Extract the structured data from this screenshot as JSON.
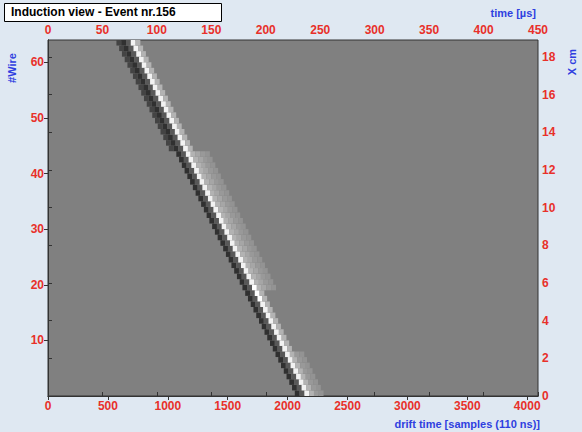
{
  "chart_data": {
    "type": "heatmap",
    "title": "Induction view - Event nr.156",
    "x_label": "drift time [samples (110 ns)]",
    "x2_label": "time [µs]",
    "y_label": "#Wire",
    "y2_label": "X cm",
    "xlim": [
      0,
      4090
    ],
    "xticks": [
      0,
      500,
      1000,
      1500,
      2000,
      2500,
      3000,
      3500,
      4000
    ],
    "x2lim": [
      0,
      450
    ],
    "x2ticks": [
      0,
      50,
      100,
      150,
      200,
      250,
      300,
      350,
      400,
      450
    ],
    "ylim": [
      0,
      64
    ],
    "yticks": [
      10,
      20,
      30,
      40,
      50,
      60
    ],
    "y2lim": [
      0,
      18.9
    ],
    "y2ticks": [
      0,
      2,
      4,
      6,
      8,
      10,
      12,
      14,
      16,
      18
    ],
    "grid": false,
    "bin_width": 40,
    "color_range": [
      -1,
      1
    ],
    "rows": [
      {
        "wire": 1,
        "start": 2060,
        "values": [
          -0.8,
          -0.4,
          0.9,
          0.4,
          0.2,
          0.15
        ]
      },
      {
        "wire": 2,
        "start": 2037,
        "values": [
          -0.8,
          -0.4,
          0.9,
          0.4,
          0.2,
          0.15
        ]
      },
      {
        "wire": 3,
        "start": 2014,
        "values": [
          -0.8,
          -0.4,
          0.9,
          0.4,
          0.2,
          0.15
        ]
      },
      {
        "wire": 4,
        "start": 1991,
        "values": [
          -0.8,
          -0.4,
          0.9,
          0.4,
          0.2,
          0.15
        ]
      },
      {
        "wire": 5,
        "start": 1968,
        "values": [
          -0.8,
          -0.4,
          0.9,
          0.4,
          0.2,
          0.15
        ]
      },
      {
        "wire": 6,
        "start": 1945,
        "values": [
          -0.8,
          -0.4,
          0.9,
          0.4,
          0.2,
          0.15
        ]
      },
      {
        "wire": 7,
        "start": 1922,
        "values": [
          -0.8,
          -0.4,
          0.9,
          0.4,
          0.2,
          0.15
        ]
      },
      {
        "wire": 8,
        "start": 1899,
        "values": [
          -0.8,
          -0.4,
          0.9,
          0.4,
          0.2,
          0.15
        ]
      },
      {
        "wire": 9,
        "start": 1876,
        "values": [
          -0.8,
          -0.4,
          0.9,
          0.4
        ]
      },
      {
        "wire": 10,
        "start": 1853,
        "values": [
          -0.8,
          -0.4,
          0.9,
          0.4
        ]
      },
      {
        "wire": 11,
        "start": 1830,
        "values": [
          -0.8,
          -0.4,
          0.9,
          0.4
        ]
      },
      {
        "wire": 12,
        "start": 1807,
        "values": [
          -0.8,
          -0.4,
          0.9,
          0.4
        ]
      },
      {
        "wire": 13,
        "start": 1784,
        "values": [
          -0.8,
          -0.4,
          0.9,
          0.4
        ]
      },
      {
        "wire": 14,
        "start": 1761,
        "values": [
          -0.8,
          -0.4,
          0.9,
          0.4
        ]
      },
      {
        "wire": 15,
        "start": 1738,
        "values": [
          -0.8,
          -0.4,
          0.9,
          0.4
        ]
      },
      {
        "wire": 16,
        "start": 1715,
        "values": [
          -0.8,
          -0.4,
          0.9,
          0.4
        ]
      },
      {
        "wire": 17,
        "start": 1692,
        "values": [
          -0.8,
          -0.4,
          0.9,
          0.4
        ]
      },
      {
        "wire": 18,
        "start": 1669,
        "values": [
          -0.8,
          -0.4,
          1.0,
          0.4
        ]
      },
      {
        "wire": 19,
        "start": 1646,
        "values": [
          -0.8,
          -0.4,
          1.0,
          0.4
        ]
      },
      {
        "wire": 20,
        "start": 1623,
        "values": [
          -0.8,
          -0.4,
          1.0,
          0.4,
          0.3,
          0.2,
          0.15
        ]
      },
      {
        "wire": 21,
        "start": 1600,
        "values": [
          -0.8,
          -0.4,
          0.9,
          0.4,
          0.3,
          0.2,
          0.15
        ]
      },
      {
        "wire": 22,
        "start": 1577,
        "values": [
          -0.8,
          -0.4,
          0.9,
          0.4,
          0.3,
          0.2,
          0.15
        ]
      },
      {
        "wire": 23,
        "start": 1554,
        "values": [
          -0.8,
          -0.4,
          0.9,
          0.4,
          0.3,
          0.2,
          0.15
        ]
      },
      {
        "wire": 24,
        "start": 1531,
        "values": [
          -0.8,
          -0.4,
          0.9,
          0.4,
          0.3,
          0.2,
          0.15
        ]
      },
      {
        "wire": 25,
        "start": 1508,
        "values": [
          -0.8,
          -0.4,
          0.9,
          0.4,
          0.3,
          0.2,
          0.15
        ]
      },
      {
        "wire": 26,
        "start": 1485,
        "values": [
          -0.8,
          -0.4,
          0.9,
          0.4,
          0.3,
          0.2,
          0.15
        ]
      },
      {
        "wire": 27,
        "start": 1462,
        "values": [
          -0.8,
          -0.4,
          0.9,
          0.4,
          0.3,
          0.2,
          0.15
        ]
      },
      {
        "wire": 28,
        "start": 1439,
        "values": [
          -0.8,
          -0.4,
          0.9,
          0.4,
          0.3,
          0.2,
          0.15
        ]
      },
      {
        "wire": 29,
        "start": 1416,
        "values": [
          -0.8,
          -0.4,
          0.9,
          0.4,
          0.3,
          0.2,
          0.15
        ]
      },
      {
        "wire": 30,
        "start": 1393,
        "values": [
          -0.8,
          -0.4,
          0.9,
          0.4,
          0.3,
          0.2,
          0.15
        ]
      },
      {
        "wire": 31,
        "start": 1370,
        "values": [
          -0.8,
          -0.4,
          0.9,
          0.4,
          0.3,
          0.2,
          0.15
        ]
      },
      {
        "wire": 32,
        "start": 1347,
        "values": [
          -0.8,
          -0.4,
          0.9,
          0.4,
          0.3,
          0.2,
          0.15
        ]
      },
      {
        "wire": 33,
        "start": 1324,
        "values": [
          -0.8,
          -0.4,
          0.9,
          0.4,
          0.3,
          0.2,
          0.15
        ]
      },
      {
        "wire": 34,
        "start": 1301,
        "values": [
          -0.8,
          -0.4,
          0.9,
          0.4,
          0.3,
          0.2,
          0.15
        ]
      },
      {
        "wire": 35,
        "start": 1278,
        "values": [
          -0.8,
          -0.4,
          0.9,
          0.4,
          0.3,
          0.2,
          0.15
        ]
      },
      {
        "wire": 36,
        "start": 1255,
        "values": [
          -0.8,
          -0.4,
          0.9,
          0.4,
          0.3,
          0.2,
          0.15
        ]
      },
      {
        "wire": 37,
        "start": 1232,
        "values": [
          -0.8,
          -0.4,
          0.9,
          0.4,
          0.3,
          0.2,
          0.15
        ]
      },
      {
        "wire": 38,
        "start": 1209,
        "values": [
          -0.8,
          -0.4,
          0.9,
          0.4,
          0.3,
          0.2,
          0.15
        ]
      },
      {
        "wire": 39,
        "start": 1186,
        "values": [
          -0.8,
          -0.4,
          0.9,
          0.4,
          0.3,
          0.2,
          0.15
        ]
      },
      {
        "wire": 40,
        "start": 1163,
        "values": [
          -0.8,
          -0.4,
          0.9,
          0.4,
          0.3,
          0.2,
          0.15
        ]
      },
      {
        "wire": 41,
        "start": 1140,
        "values": [
          -0.8,
          -0.4,
          0.9,
          0.4,
          0.3,
          0.2,
          0.15
        ]
      },
      {
        "wire": 42,
        "start": 1117,
        "values": [
          -0.8,
          -0.4,
          0.9,
          0.4,
          0.3,
          0.2,
          0.15
        ]
      },
      {
        "wire": 43,
        "start": 1094,
        "values": [
          -0.8,
          -0.4,
          0.9,
          0.4,
          0.3,
          0.2,
          0.15
        ]
      },
      {
        "wire": 44,
        "start": 1071,
        "values": [
          -0.8,
          -0.4,
          0.9,
          0.4,
          0.3,
          0.2,
          0.15
        ]
      },
      {
        "wire": 45,
        "start": 1008,
        "values": [
          -0.6,
          -0.8,
          -0.4,
          0.9,
          0.4
        ]
      },
      {
        "wire": 46,
        "start": 985,
        "values": [
          -0.6,
          -0.8,
          -0.4,
          0.9,
          0.4
        ]
      },
      {
        "wire": 47,
        "start": 962,
        "values": [
          -0.6,
          -0.8,
          -0.4,
          0.9,
          0.4
        ]
      },
      {
        "wire": 48,
        "start": 939,
        "values": [
          -0.6,
          -0.8,
          -0.4,
          0.9,
          0.4
        ]
      },
      {
        "wire": 49,
        "start": 916,
        "values": [
          -0.6,
          -0.8,
          -0.4,
          0.9,
          0.4
        ]
      },
      {
        "wire": 50,
        "start": 893,
        "values": [
          -0.6,
          -0.8,
          -0.4,
          0.9,
          0.4
        ]
      },
      {
        "wire": 51,
        "start": 870,
        "values": [
          -0.6,
          -0.8,
          -0.4,
          0.9,
          0.4
        ]
      },
      {
        "wire": 52,
        "start": 847,
        "values": [
          -0.6,
          -0.8,
          -0.4,
          0.9,
          0.4
        ]
      },
      {
        "wire": 53,
        "start": 824,
        "values": [
          -0.6,
          -0.8,
          -0.4,
          0.9,
          0.4
        ]
      },
      {
        "wire": 54,
        "start": 801,
        "values": [
          -0.6,
          -0.8,
          -0.4,
          0.9,
          0.4
        ]
      },
      {
        "wire": 55,
        "start": 778,
        "values": [
          -0.6,
          -0.8,
          -0.4,
          0.9,
          0.4
        ]
      },
      {
        "wire": 56,
        "start": 755,
        "values": [
          -0.6,
          -0.8,
          -0.4,
          0.9,
          0.4
        ]
      },
      {
        "wire": 57,
        "start": 732,
        "values": [
          -0.6,
          -0.8,
          -0.4,
          0.9,
          0.4
        ]
      },
      {
        "wire": 58,
        "start": 709,
        "values": [
          -0.6,
          -0.8,
          -0.4,
          0.9,
          0.4
        ]
      },
      {
        "wire": 59,
        "start": 686,
        "values": [
          -0.6,
          -0.8,
          -0.4,
          0.9,
          0.4
        ]
      },
      {
        "wire": 60,
        "start": 663,
        "values": [
          -0.6,
          -0.8,
          -0.4,
          0.9,
          0.4
        ]
      },
      {
        "wire": 61,
        "start": 640,
        "values": [
          -0.6,
          -0.8,
          -0.4,
          0.9,
          0.4
        ]
      },
      {
        "wire": 62,
        "start": 617,
        "values": [
          -0.6,
          -0.8,
          -0.4,
          0.9,
          0.4
        ]
      },
      {
        "wire": 63,
        "start": 594,
        "values": [
          -0.6,
          -0.8,
          -0.4,
          0.9,
          0.4
        ]
      },
      {
        "wire": 64,
        "start": 571,
        "values": [
          -0.6,
          -0.8,
          -0.4,
          0.9,
          0.4
        ]
      }
    ]
  }
}
